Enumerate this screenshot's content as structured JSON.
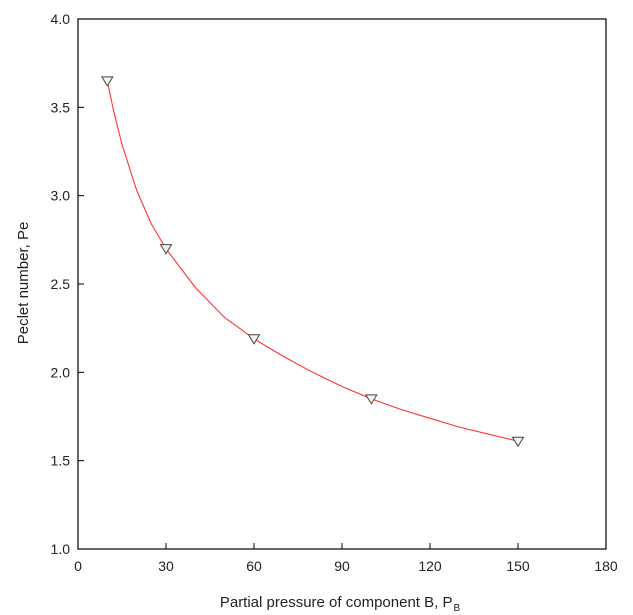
{
  "chart_data": {
    "type": "scatter",
    "title": "",
    "xlabel": "Partial pressure of component B, P",
    "xlabel_subscript": "B",
    "ylabel": "Peclet number, Pe",
    "xlim": [
      0,
      180
    ],
    "ylim": [
      1.0,
      4.0
    ],
    "xticks": [
      "0",
      "30",
      "60",
      "90",
      "120",
      "150",
      "180"
    ],
    "yticks": [
      "1.0",
      "1.5",
      "2.0",
      "2.5",
      "3.0",
      "3.5",
      "4.0"
    ],
    "grid": false,
    "legend": "none",
    "series": [
      {
        "marker": "triangle-down",
        "x": [
          10,
          30,
          60,
          100,
          150
        ],
        "y": [
          3.65,
          2.7,
          2.19,
          1.85,
          1.61
        ]
      }
    ],
    "fit_line": {
      "color": "#ff3333",
      "x": [
        10,
        12,
        15,
        20,
        25,
        30,
        40,
        50,
        60,
        70,
        80,
        90,
        100,
        110,
        120,
        130,
        140,
        150
      ],
      "y": [
        3.65,
        3.49,
        3.29,
        3.03,
        2.84,
        2.7,
        2.48,
        2.31,
        2.19,
        2.09,
        2.0,
        1.92,
        1.85,
        1.79,
        1.74,
        1.69,
        1.65,
        1.61
      ]
    },
    "colors": {
      "axis": "#000000",
      "marker_stroke": "#444444",
      "marker_fill": "#f3f3f3"
    }
  }
}
